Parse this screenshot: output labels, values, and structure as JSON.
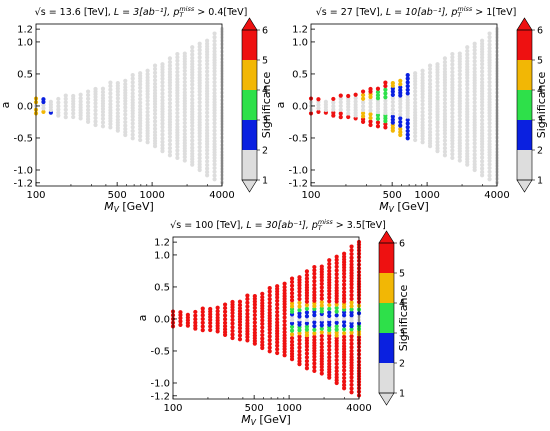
{
  "figure": {
    "significance_colors": {
      "1-2": "#dddddd",
      "2-3": "#0a20e0",
      "3-4": "#2ee04a",
      "4-5": "#f2b705",
      "5-6": "#ee1111"
    }
  },
  "chart_data": [
    {
      "type": "scatter",
      "title": "√s = 13.6 [TeV], L = 3[ab⁻¹], p_T^miss > 0.4[TeV]",
      "title_parts": {
        "energy": "√s = 13.6 [TeV], ",
        "lumi": "L = 3[ab⁻¹], ",
        "cut": "p",
        "cut_sub": "T",
        "cut_sup": "miss",
        "cut_tail": " > 0.4[TeV]"
      },
      "xlabel": "M_V [GeV]",
      "xlabel_main": "M",
      "xlabel_sub": "V",
      "xlabel_tail": " [GeV]",
      "ylabel": "a",
      "x_scale": "log",
      "xlim": [
        100,
        4000
      ],
      "ylim": [
        -1.25,
        1.28
      ],
      "xticks": [
        "100",
        "500",
        "1000",
        "4000"
      ],
      "xtick_values": [
        100,
        500,
        1000,
        4000
      ],
      "yticks": [
        "1.2",
        "1.0",
        "0.5",
        "0.0",
        "-0.5",
        "-1.0",
        "-1.2"
      ],
      "ytick_values": [
        1.2,
        1.0,
        0.5,
        0.0,
        -0.5,
        -1.0,
        -1.2
      ],
      "grid": false,
      "colorbar": {
        "label": "Significance",
        "ticks": [
          "1",
          "2",
          "3",
          "4",
          "5",
          "6"
        ],
        "extend": "both"
      },
      "upper_branch_significance_by_mass": {
        "100": 4.5,
        "110": 3.5,
        "120": 2.5,
        "130": 2.2,
        "140": 2.5,
        "150": 1.5
      },
      "lower_branch_significance_by_mass": {
        "100": 4.0,
        "110": 3.2,
        "120": 4.2,
        "130": 2.0,
        "140": 2.5,
        "150": 1.5
      },
      "max_significance": 4.5,
      "region": "triangular band, a ∈ [-1.2, 1.2], widening from |a|≈0.1 at 100 GeV to |a|≈1.2 at 4000 GeV"
    },
    {
      "type": "scatter",
      "title": "√s = 27 [TeV], L = 10[ab⁻¹], p_T^miss > 1[TeV]",
      "title_parts": {
        "energy": "√s = 27 [TeV], ",
        "lumi": "L = 10[ab⁻¹], ",
        "cut": "p",
        "cut_sub": "T",
        "cut_sup": "miss",
        "cut_tail": " > 1[TeV]"
      },
      "xlabel": "M_V [GeV]",
      "xlabel_main": "M",
      "xlabel_sub": "V",
      "xlabel_tail": " [GeV]",
      "ylabel": "a",
      "x_scale": "log",
      "xlim": [
        100,
        4000
      ],
      "ylim": [
        -1.25,
        1.28
      ],
      "xticks": [
        "100",
        "500",
        "1000",
        "4000"
      ],
      "xtick_values": [
        100,
        500,
        1000,
        4000
      ],
      "yticks": [
        "1.2",
        "1.0",
        "0.5",
        "0.0",
        "-0.5",
        "-1.0",
        "-1.2"
      ],
      "ytick_values": [
        1.2,
        1.0,
        0.5,
        0.0,
        -0.5,
        -1.0,
        -1.2
      ],
      "grid": false,
      "colorbar": {
        "label": "Significance",
        "ticks": [
          "1",
          "2",
          "3",
          "4",
          "5",
          "6"
        ],
        "extend": "both"
      },
      "edge_significance_by_mass": {
        "100": 6,
        "150": 6,
        "200": 6,
        "300": 6,
        "400": 5.5,
        "500": 5,
        "600": 4,
        "700": 2.5,
        "800": 1.5,
        "1000": 1.5
      },
      "inner_band": "significance 2-5 points at |a| between 0.05 and 0.4 for masses 250-700 GeV",
      "max_significance": 6
    },
    {
      "type": "scatter",
      "title": "√s = 100 [TeV], L = 30[ab⁻¹], p_T^miss > 3.5[TeV]",
      "title_parts": {
        "energy": "√s = 100 [TeV], ",
        "lumi": "L = 30[ab⁻¹], ",
        "cut": "p",
        "cut_sub": "T",
        "cut_sup": "miss",
        "cut_tail": " > 3.5[TeV]"
      },
      "xlabel": "M_V [GeV]",
      "xlabel_main": "M",
      "xlabel_sub": "V",
      "xlabel_tail": " [GeV]",
      "ylabel": "a",
      "x_scale": "log",
      "xlim": [
        100,
        4000
      ],
      "ylim": [
        -1.25,
        1.28
      ],
      "xticks": [
        "100",
        "500",
        "1000",
        "4000"
      ],
      "xtick_values": [
        100,
        500,
        1000,
        4000
      ],
      "yticks": [
        "1.2",
        "1.0",
        "0.5",
        "0.0",
        "-0.5",
        "-1.0",
        "-1.2"
      ],
      "ytick_values": [
        1.2,
        1.0,
        0.5,
        0.0,
        -0.5,
        -1.0,
        -1.2
      ],
      "grid": false,
      "colorbar": {
        "label": "Significance",
        "ticks": [
          "1",
          "2",
          "3",
          "4",
          "5",
          "6"
        ],
        "extend": "both"
      },
      "most_region_significance": 6,
      "low_significance_wedge": "small |a| < 0.3 for masses above ~1000 GeV show significance 1-5",
      "max_significance": 6
    }
  ]
}
